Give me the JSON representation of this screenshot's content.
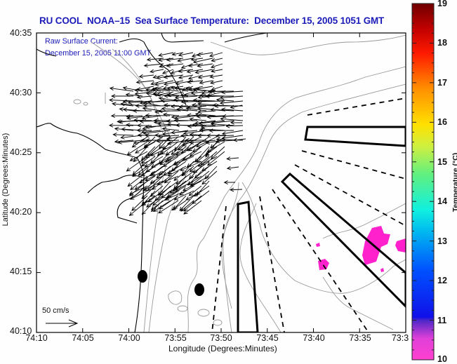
{
  "title": "RU COOL  NOAA–15  Sea Surface Temperature:  December 15, 2005 1051 GMT",
  "subtitle_lines": [
    "Raw Surface Current:",
    "December 15, 2005 11:00 GMT"
  ],
  "y_axis": {
    "title": "Latitude (Degrees:Minutes)",
    "ticks": [
      "40:35",
      "40:30",
      "40:25",
      "40:20",
      "40:15",
      "40:10"
    ]
  },
  "x_axis": {
    "title": "Longitude (Degrees:Minutes)",
    "ticks": [
      "74:10",
      "74:05",
      "74:00",
      "73:55",
      "73:50",
      "73:45",
      "73:40",
      "73:35",
      "73:3"
    ]
  },
  "colorbar": {
    "title": "Temperature (°C)",
    "ticks": [
      "19",
      "18",
      "17",
      "16",
      "15",
      "14",
      "13",
      "12",
      "11",
      "10"
    ],
    "range": [
      10,
      19
    ],
    "colors": [
      "#ff40cf",
      "#b030d8",
      "#2020e8",
      "#0060ff",
      "#00d8f0",
      "#40f0a0",
      "#c8f040",
      "#ffe000",
      "#ff8c00",
      "#ff2000",
      "#e00000",
      "#7a0000"
    ]
  },
  "scale_arrow": {
    "label": "50 cm/s"
  },
  "colors": {
    "title": "#1a1ab8",
    "sst_patch": "#ff22cc",
    "contour": "#888888",
    "coast": "#000000"
  }
}
